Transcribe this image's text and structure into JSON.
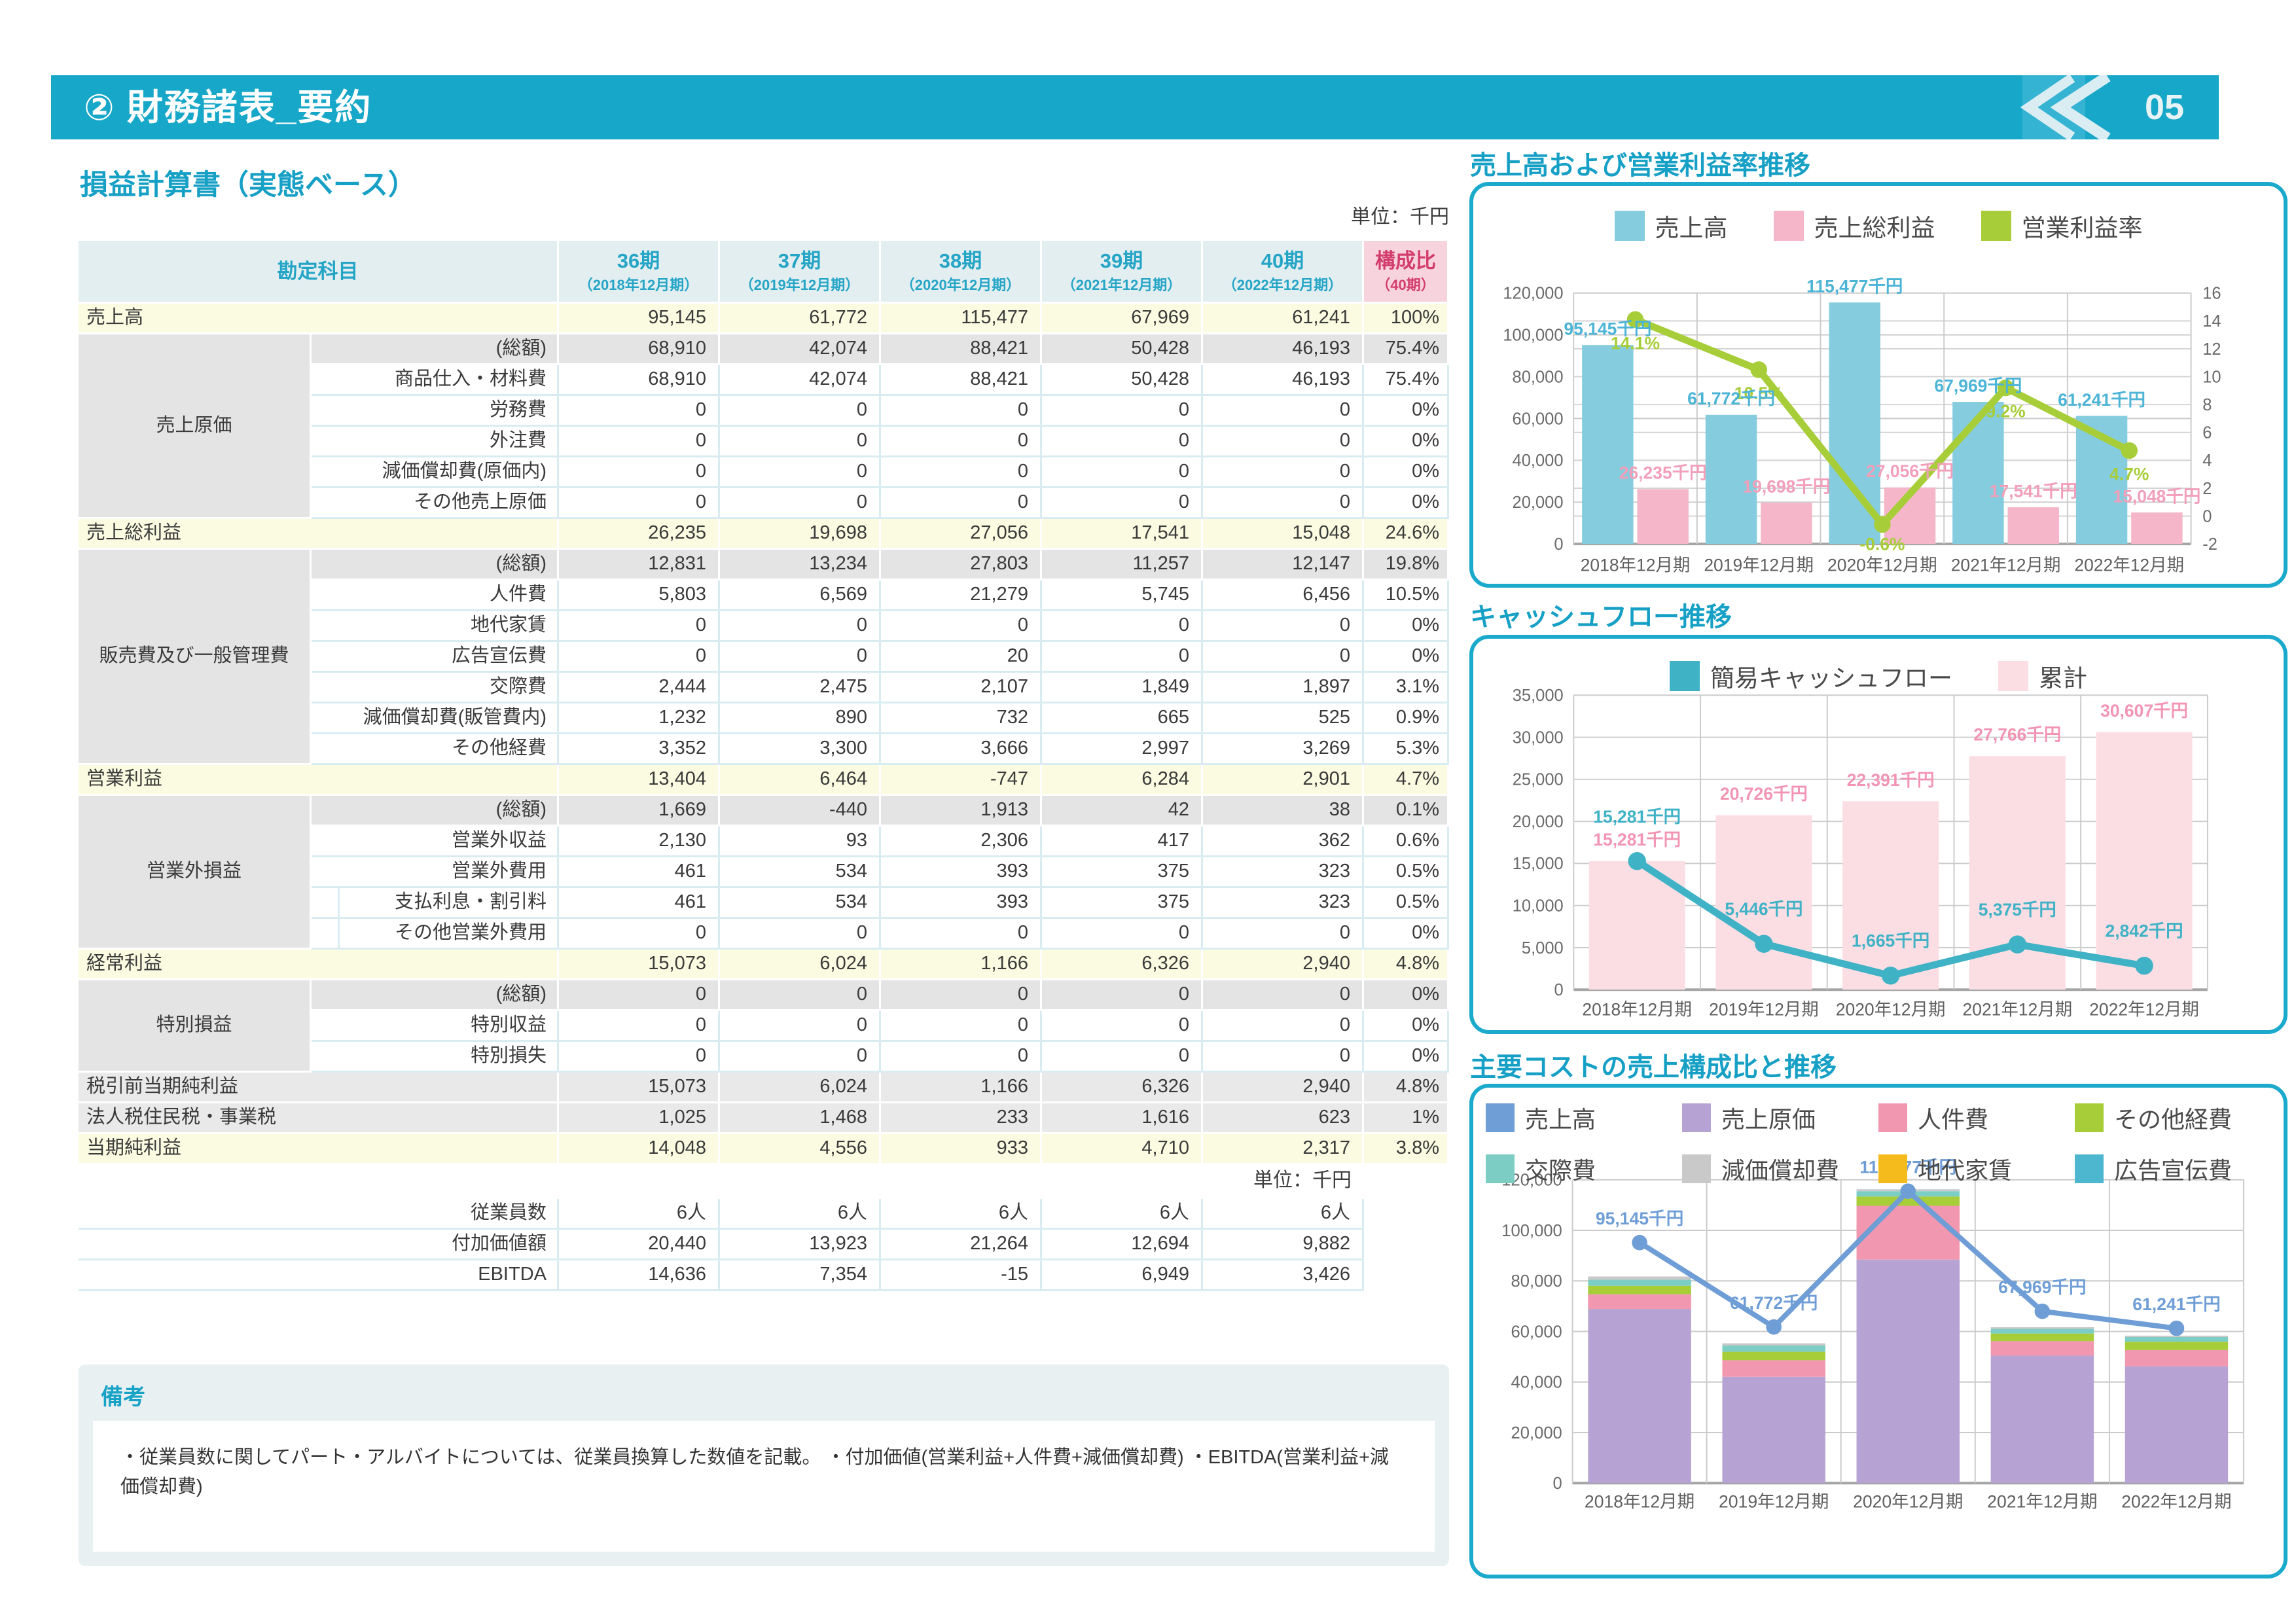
{
  "header": {
    "title": "② 財務諸表_要約",
    "page_number": "05"
  },
  "document": {
    "section_title": "損益計算書（実態ベース）",
    "unit_note_top": "単位：千円",
    "unit_note_mid": "単位：千円"
  },
  "table": {
    "account_header": "勘定科目",
    "periods": [
      {
        "term": "36期",
        "sub": "（2018年12月期）"
      },
      {
        "term": "37期",
        "sub": "（2019年12月期）"
      },
      {
        "term": "38期",
        "sub": "（2020年12月期）"
      },
      {
        "term": "39期",
        "sub": "（2021年12月期）"
      },
      {
        "term": "40期",
        "sub": "（2022年12月期）"
      }
    ],
    "ratio_header": {
      "term": "構成比",
      "sub": "（40期）"
    },
    "rows": [
      {
        "type": "sum",
        "label": "売上高",
        "values": [
          "95,145",
          "61,772",
          "115,477",
          "67,969",
          "61,241"
        ],
        "ratio": "100%"
      },
      {
        "type": "total",
        "group": "売上原価",
        "span": 6,
        "label": "(総額)",
        "values": [
          "68,910",
          "42,074",
          "88,421",
          "50,428",
          "46,193"
        ],
        "ratio": "75.4%"
      },
      {
        "type": "detail",
        "label": "商品仕入・材料費",
        "values": [
          "68,910",
          "42,074",
          "88,421",
          "50,428",
          "46,193"
        ],
        "ratio": "75.4%"
      },
      {
        "type": "detail",
        "label": "労務費",
        "values": [
          "0",
          "0",
          "0",
          "0",
          "0"
        ],
        "ratio": "0%"
      },
      {
        "type": "detail",
        "label": "外注費",
        "values": [
          "0",
          "0",
          "0",
          "0",
          "0"
        ],
        "ratio": "0%"
      },
      {
        "type": "detail",
        "label": "減価償却費(原価内)",
        "values": [
          "0",
          "0",
          "0",
          "0",
          "0"
        ],
        "ratio": "0%"
      },
      {
        "type": "detail",
        "label": "その他売上原価",
        "values": [
          "0",
          "0",
          "0",
          "0",
          "0"
        ],
        "ratio": "0%"
      },
      {
        "type": "sum",
        "label": "売上総利益",
        "values": [
          "26,235",
          "19,698",
          "27,056",
          "17,541",
          "15,048"
        ],
        "ratio": "24.6%"
      },
      {
        "type": "total",
        "group": "販売費及び一般管理費",
        "span": 7,
        "label": "(総額)",
        "values": [
          "12,831",
          "13,234",
          "27,803",
          "11,257",
          "12,147"
        ],
        "ratio": "19.8%"
      },
      {
        "type": "detail",
        "label": "人件費",
        "values": [
          "5,803",
          "6,569",
          "21,279",
          "5,745",
          "6,456"
        ],
        "ratio": "10.5%"
      },
      {
        "type": "detail",
        "label": "地代家賃",
        "values": [
          "0",
          "0",
          "0",
          "0",
          "0"
        ],
        "ratio": "0%"
      },
      {
        "type": "detail",
        "label": "広告宣伝費",
        "values": [
          "0",
          "0",
          "20",
          "0",
          "0"
        ],
        "ratio": "0%"
      },
      {
        "type": "detail",
        "label": "交際費",
        "values": [
          "2,444",
          "2,475",
          "2,107",
          "1,849",
          "1,897"
        ],
        "ratio": "3.1%"
      },
      {
        "type": "detail",
        "label": "減価償却費(販管費内)",
        "values": [
          "1,232",
          "890",
          "732",
          "665",
          "525"
        ],
        "ratio": "0.9%"
      },
      {
        "type": "detail",
        "label": "その他経費",
        "values": [
          "3,352",
          "3,300",
          "3,666",
          "2,997",
          "3,269"
        ],
        "ratio": "5.3%"
      },
      {
        "type": "sum",
        "label": "営業利益",
        "values": [
          "13,404",
          "6,464",
          "-747",
          "6,284",
          "2,901"
        ],
        "ratio": "4.7%"
      },
      {
        "type": "total",
        "group": "営業外損益",
        "span": 5,
        "label": "(総額)",
        "values": [
          "1,669",
          "-440",
          "1,913",
          "42",
          "38"
        ],
        "ratio": "0.1%"
      },
      {
        "type": "detail",
        "label": "営業外収益",
        "values": [
          "2,130",
          "93",
          "2,306",
          "417",
          "362"
        ],
        "ratio": "0.6%"
      },
      {
        "type": "detail",
        "label": "営業外費用",
        "values": [
          "461",
          "534",
          "393",
          "375",
          "323"
        ],
        "ratio": "0.5%"
      },
      {
        "type": "detail",
        "indent": true,
        "label": "支払利息・割引料",
        "values": [
          "461",
          "534",
          "393",
          "375",
          "323"
        ],
        "ratio": "0.5%"
      },
      {
        "type": "detail",
        "indent": true,
        "label": "その他営業外費用",
        "values": [
          "0",
          "0",
          "0",
          "0",
          "0"
        ],
        "ratio": "0%"
      },
      {
        "type": "sum",
        "label": "経常利益",
        "values": [
          "15,073",
          "6,024",
          "1,166",
          "6,326",
          "2,940"
        ],
        "ratio": "4.8%"
      },
      {
        "type": "total",
        "group": "特別損益",
        "span": 3,
        "label": "(総額)",
        "values": [
          "0",
          "0",
          "0",
          "0",
          "0"
        ],
        "ratio": "0%"
      },
      {
        "type": "detail",
        "label": "特別収益",
        "values": [
          "0",
          "0",
          "0",
          "0",
          "0"
        ],
        "ratio": "0%"
      },
      {
        "type": "detail",
        "label": "特別損失",
        "values": [
          "0",
          "0",
          "0",
          "0",
          "0"
        ],
        "ratio": "0%"
      },
      {
        "type": "grayfull",
        "label": "税引前当期純利益",
        "values": [
          "15,073",
          "6,024",
          "1,166",
          "6,326",
          "2,940"
        ],
        "ratio": "4.8%"
      },
      {
        "type": "grayfull",
        "label": "法人税住民税・事業税",
        "values": [
          "1,025",
          "1,468",
          "233",
          "1,616",
          "623"
        ],
        "ratio": "1%"
      },
      {
        "type": "sum",
        "label": "当期純利益",
        "values": [
          "14,048",
          "4,556",
          "933",
          "4,710",
          "2,317"
        ],
        "ratio": "3.8%"
      }
    ],
    "extra_rows": [
      {
        "label": "従業員数",
        "values": [
          "6人",
          "6人",
          "6人",
          "6人",
          "6人"
        ]
      },
      {
        "label": "付加価値額",
        "values": [
          "20,440",
          "13,923",
          "21,264",
          "12,694",
          "9,882"
        ]
      },
      {
        "label": "EBITDA",
        "values": [
          "14,636",
          "7,354",
          "-15",
          "6,949",
          "3,426"
        ]
      }
    ]
  },
  "remarks": {
    "title": "備考",
    "text": "・従業員数に関してパート・アルバイトについては、従業員換算した数値を記載。 ・付加価値(営業利益+人件費+減価償却費) ・EBITDA(営業利益+減価償却費)"
  },
  "chart_data": [
    {
      "type": "bar",
      "subtype": "grouped-bar-with-line",
      "title": "売上高および営業利益率推移",
      "categories": [
        "2018年12月期",
        "2019年12月期",
        "2020年12月期",
        "2021年12月期",
        "2022年12月期"
      ],
      "y_axis": {
        "min": 0,
        "max": 120000,
        "step": 20000
      },
      "y2_axis": {
        "min": -2,
        "max": 16,
        "step": 2
      },
      "legend": [
        {
          "label": "売上高",
          "color": "#85cdde"
        },
        {
          "label": "売上総利益",
          "color": "#f5b6c9"
        },
        {
          "label": "営業利益率",
          "color": "#a7cd39"
        }
      ],
      "series": [
        {
          "kind": "bar",
          "name": "売上高",
          "color": "#85cdde",
          "values": [
            95145,
            61772,
            115477,
            67969,
            61241
          ],
          "labels": [
            "95,145千円",
            "61,772千円",
            "115,477千円",
            "67,969千円",
            "61,241千円"
          ],
          "label_color": "#4cb4d6"
        },
        {
          "kind": "bar",
          "name": "売上総利益",
          "color": "#f5b6c9",
          "values": [
            26235,
            19698,
            27056,
            17541,
            15048
          ],
          "labels": [
            "26,235千円",
            "19,698千円",
            "27,056千円",
            "17,541千円",
            "15,048千円"
          ],
          "label_color": "#f29fba"
        },
        {
          "kind": "line",
          "name": "営業利益率",
          "axis": "y2",
          "color": "#a7cd39",
          "values": [
            14.1,
            10.5,
            -0.6,
            9.2,
            4.7
          ],
          "labels": [
            "14.1%",
            "10.5%",
            "-0.6%",
            "9.2%",
            "4.7%"
          ],
          "label_color": "#a7cd39"
        }
      ]
    },
    {
      "type": "bar",
      "subtype": "bar-with-line",
      "title": "キャッシュフロー推移",
      "categories": [
        "2018年12月期",
        "2019年12月期",
        "2020年12月期",
        "2021年12月期",
        "2022年12月期"
      ],
      "y_axis": {
        "min": 0,
        "max": 35000,
        "step": 5000
      },
      "legend": [
        {
          "label": "簡易キャッシュフロー",
          "color": "#3fb2c6"
        },
        {
          "label": "累計",
          "color": "#fbdee4"
        }
      ],
      "series": [
        {
          "kind": "bar",
          "name": "累計",
          "color": "#fbdee4",
          "values": [
            15281,
            20726,
            22391,
            27766,
            30607
          ],
          "labels": [
            "15,281千円",
            "20,726千円",
            "22,391千円",
            "27,766千円",
            "30,607千円"
          ],
          "label_color": "#f295b3"
        },
        {
          "kind": "line",
          "name": "簡易キャッシュフロー",
          "color": "#3fb2c6",
          "values": [
            15281,
            5446,
            1665,
            5375,
            2842
          ],
          "labels": [
            "15,281千円",
            "5,446千円",
            "1,665千円",
            "5,375千円",
            "2,842千円"
          ],
          "label_color": "#3fb2c6"
        }
      ]
    },
    {
      "type": "bar",
      "subtype": "stacked-bar-with-line",
      "title": "主要コストの売上構成比と推移",
      "categories": [
        "2018年12月期",
        "2019年12月期",
        "2020年12月期",
        "2021年12月期",
        "2022年12月期"
      ],
      "y_axis": {
        "min": 0,
        "max": 120000,
        "step": 20000
      },
      "legend": [
        {
          "label": "売上高",
          "color": "#6f9ed6"
        },
        {
          "label": "売上原価",
          "color": "#b6a3d3"
        },
        {
          "label": "人件費",
          "color": "#f197af"
        },
        {
          "label": "その他経費",
          "color": "#a7cd39"
        },
        {
          "label": "交際費",
          "color": "#7ccdc3"
        },
        {
          "label": "減価償却費",
          "color": "#c9c9c9"
        },
        {
          "label": "地代家賃",
          "color": "#f5bb1d"
        },
        {
          "label": "広告宣伝費",
          "color": "#4cb7cf"
        }
      ],
      "stacks": [
        {
          "name": "売上原価",
          "color": "#b6a3d3",
          "values": [
            68910,
            42074,
            88421,
            50428,
            46193
          ]
        },
        {
          "name": "人件費",
          "color": "#f197af",
          "values": [
            5803,
            6569,
            21279,
            5745,
            6456
          ]
        },
        {
          "name": "その他経費",
          "color": "#a7cd39",
          "values": [
            3352,
            3300,
            3666,
            2997,
            3269
          ]
        },
        {
          "name": "交際費",
          "color": "#7ccdc3",
          "values": [
            2444,
            2475,
            2107,
            1849,
            1897
          ]
        },
        {
          "name": "減価償却費",
          "color": "#c9c9c9",
          "values": [
            1232,
            890,
            732,
            665,
            525
          ]
        },
        {
          "name": "地代家賃",
          "color": "#f5bb1d",
          "values": [
            0,
            0,
            0,
            0,
            0
          ]
        },
        {
          "name": "広告宣伝費",
          "color": "#4cb7cf",
          "values": [
            0,
            0,
            20,
            0,
            0
          ]
        }
      ],
      "line": {
        "name": "売上高",
        "color": "#6f9ed6",
        "values": [
          95145,
          61772,
          115477,
          67969,
          61241
        ],
        "labels": [
          "95,145千円",
          "61,772千円",
          "115,477千円",
          "67,969千円",
          "61,241千円"
        ],
        "label_color": "#6f9ed6"
      }
    }
  ]
}
